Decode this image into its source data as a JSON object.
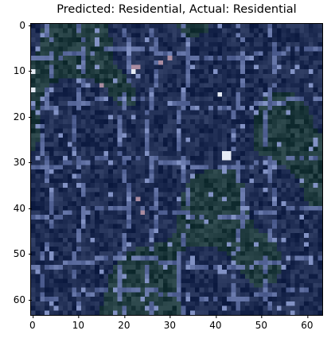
{
  "figure": {
    "title": "Predicted: Residential, Actual: Residential"
  },
  "axes": {
    "x_ticks": [
      "0",
      "10",
      "20",
      "30",
      "40",
      "50",
      "60"
    ],
    "y_ticks": [
      "0",
      "10",
      "20",
      "30",
      "40",
      "50",
      "60"
    ],
    "x_range": [
      -0.5,
      63.5
    ],
    "y_range": [
      -0.5,
      63.5
    ]
  },
  "image": {
    "description_colors": {
      "base": "#1e2c52",
      "road": "#5a6a9c",
      "vegetation": "#1f3a3e",
      "bright": "#e6ecf5"
    }
  }
}
